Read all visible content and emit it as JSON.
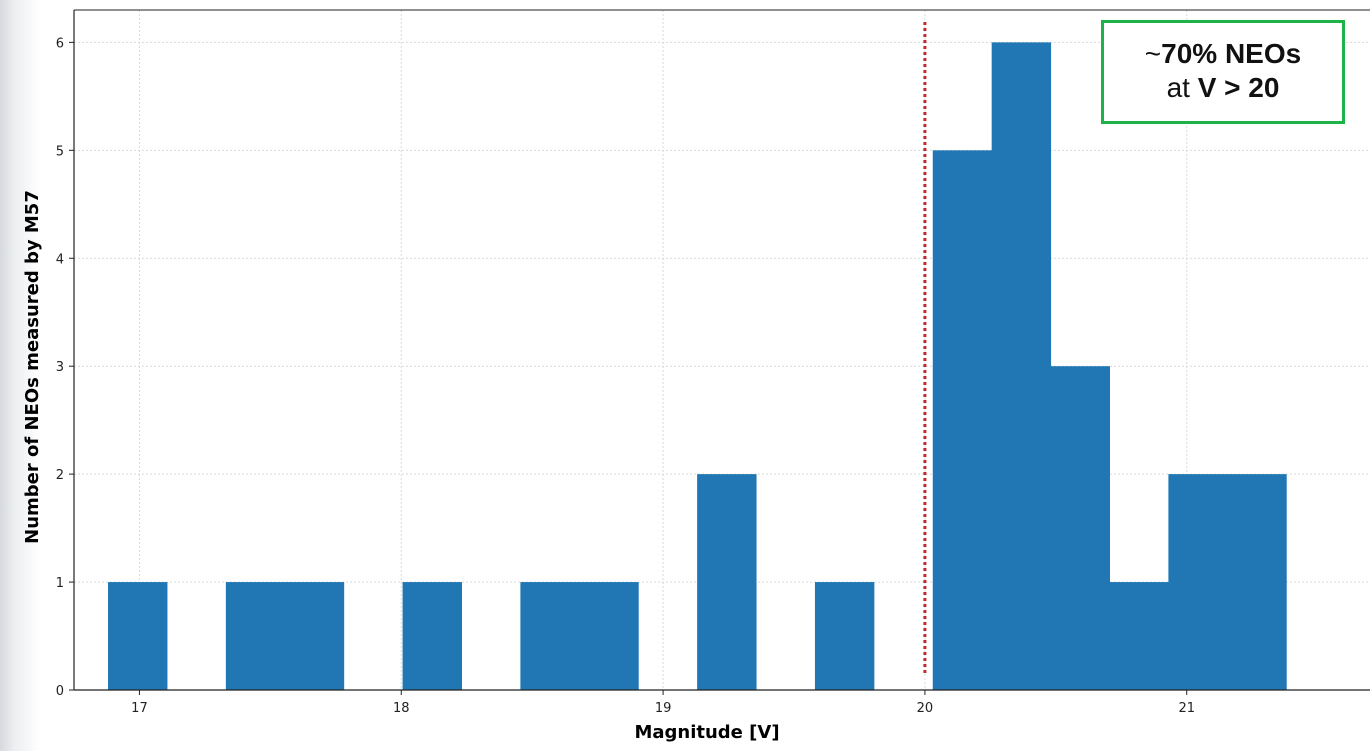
{
  "chart_data": {
    "type": "bar",
    "xlabel": "Magnitude [V]",
    "ylabel": "Number of NEOs measured by M57",
    "xlim": [
      16.75,
      21.7
    ],
    "ylim": [
      0,
      6.3
    ],
    "x_ticks": [
      "17",
      "18",
      "19",
      "20",
      "21"
    ],
    "y_ticks": [
      "0",
      "1",
      "2",
      "3",
      "4",
      "5",
      "6"
    ],
    "grid": true,
    "bin_width": 0.225,
    "bins": [
      {
        "x0": 16.88,
        "x1": 17.105,
        "count": 1
      },
      {
        "x0": 17.33,
        "x1": 17.555,
        "count": 1
      },
      {
        "x0": 17.555,
        "x1": 17.78,
        "count": 1
      },
      {
        "x0": 18.005,
        "x1": 18.23,
        "count": 1
      },
      {
        "x0": 18.455,
        "x1": 18.68,
        "count": 1
      },
      {
        "x0": 18.68,
        "x1": 18.905,
        "count": 1
      },
      {
        "x0": 19.13,
        "x1": 19.355,
        "count": 2
      },
      {
        "x0": 19.58,
        "x1": 19.805,
        "count": 1
      },
      {
        "x0": 20.03,
        "x1": 20.255,
        "count": 5
      },
      {
        "x0": 20.255,
        "x1": 20.48,
        "count": 6
      },
      {
        "x0": 20.48,
        "x1": 20.705,
        "count": 3
      },
      {
        "x0": 20.705,
        "x1": 20.93,
        "count": 1
      },
      {
        "x0": 20.93,
        "x1": 21.155,
        "count": 2
      },
      {
        "x0": 21.155,
        "x1": 21.38,
        "count": 2
      }
    ],
    "threshold_line": {
      "x": 20,
      "style": "dotted",
      "color": "#c0282d"
    },
    "bar_color": "#2077b4"
  },
  "annotation": {
    "line1_prefix": "~",
    "line1_bold": "70% NEOs",
    "line2_prefix": "at ",
    "line2_bold": "V > 20",
    "border_color": "#1db34a"
  }
}
